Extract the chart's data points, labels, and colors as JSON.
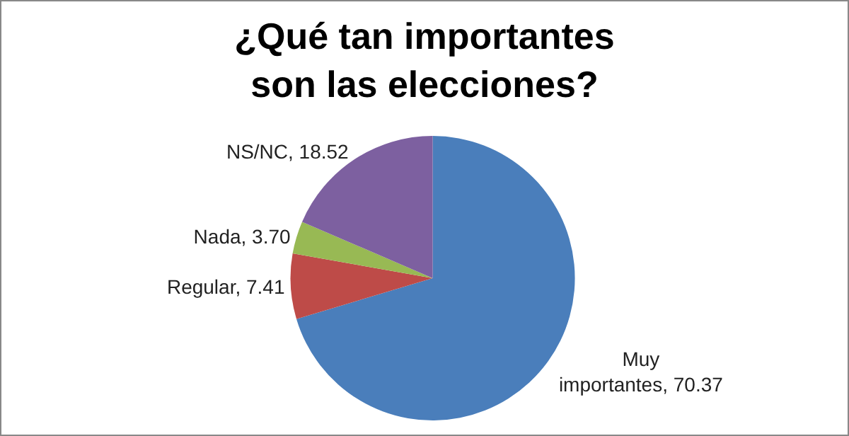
{
  "chart_data": {
    "type": "pie",
    "title": "¿Qué tan importantes son las elecciones?",
    "categories": [
      "Muy importantes",
      "Regular",
      "Nada",
      "NS/NC"
    ],
    "values": [
      70.37,
      7.41,
      3.7,
      18.52
    ],
    "value_labels": [
      "70.37",
      "7.41",
      "3.70",
      "18.52"
    ],
    "colors": [
      "#4a7ebb",
      "#be4b48",
      "#98b954",
      "#7d60a0"
    ],
    "legend": false
  }
}
